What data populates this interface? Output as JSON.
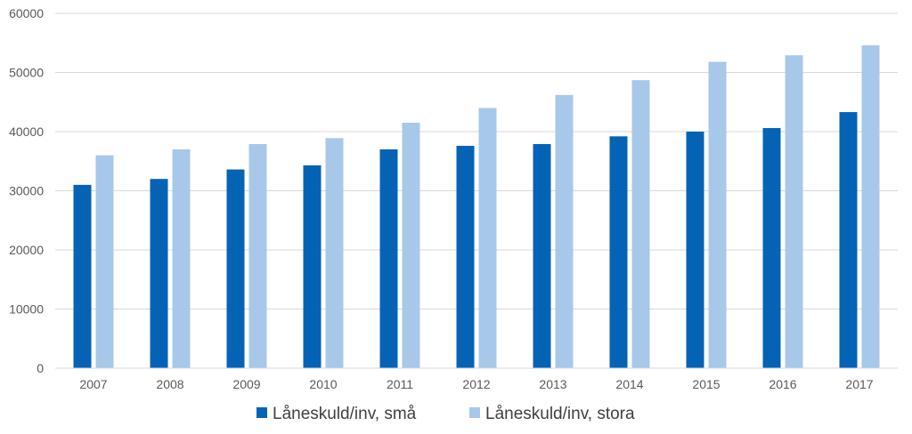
{
  "chart_data": {
    "type": "bar",
    "categories": [
      "2007",
      "2008",
      "2009",
      "2010",
      "2011",
      "2012",
      "2013",
      "2014",
      "2015",
      "2016",
      "2017"
    ],
    "series": [
      {
        "name": "Låneskuld/inv, små",
        "color": "#0563b5",
        "values": [
          31000,
          32000,
          33600,
          34300,
          37000,
          37600,
          37900,
          39200,
          40000,
          40600,
          43300
        ]
      },
      {
        "name": "Låneskuld/inv, stora",
        "color": "#a7c8e9",
        "values": [
          36000,
          37000,
          37900,
          38900,
          41500,
          44000,
          46200,
          48700,
          51800,
          52900,
          54600
        ]
      }
    ],
    "ylim": [
      0,
      60000
    ],
    "yticks": [
      0,
      10000,
      20000,
      30000,
      40000,
      50000,
      60000
    ],
    "grid": true,
    "legend_position": "bottom",
    "gridline_color": "#d9d9d9"
  }
}
